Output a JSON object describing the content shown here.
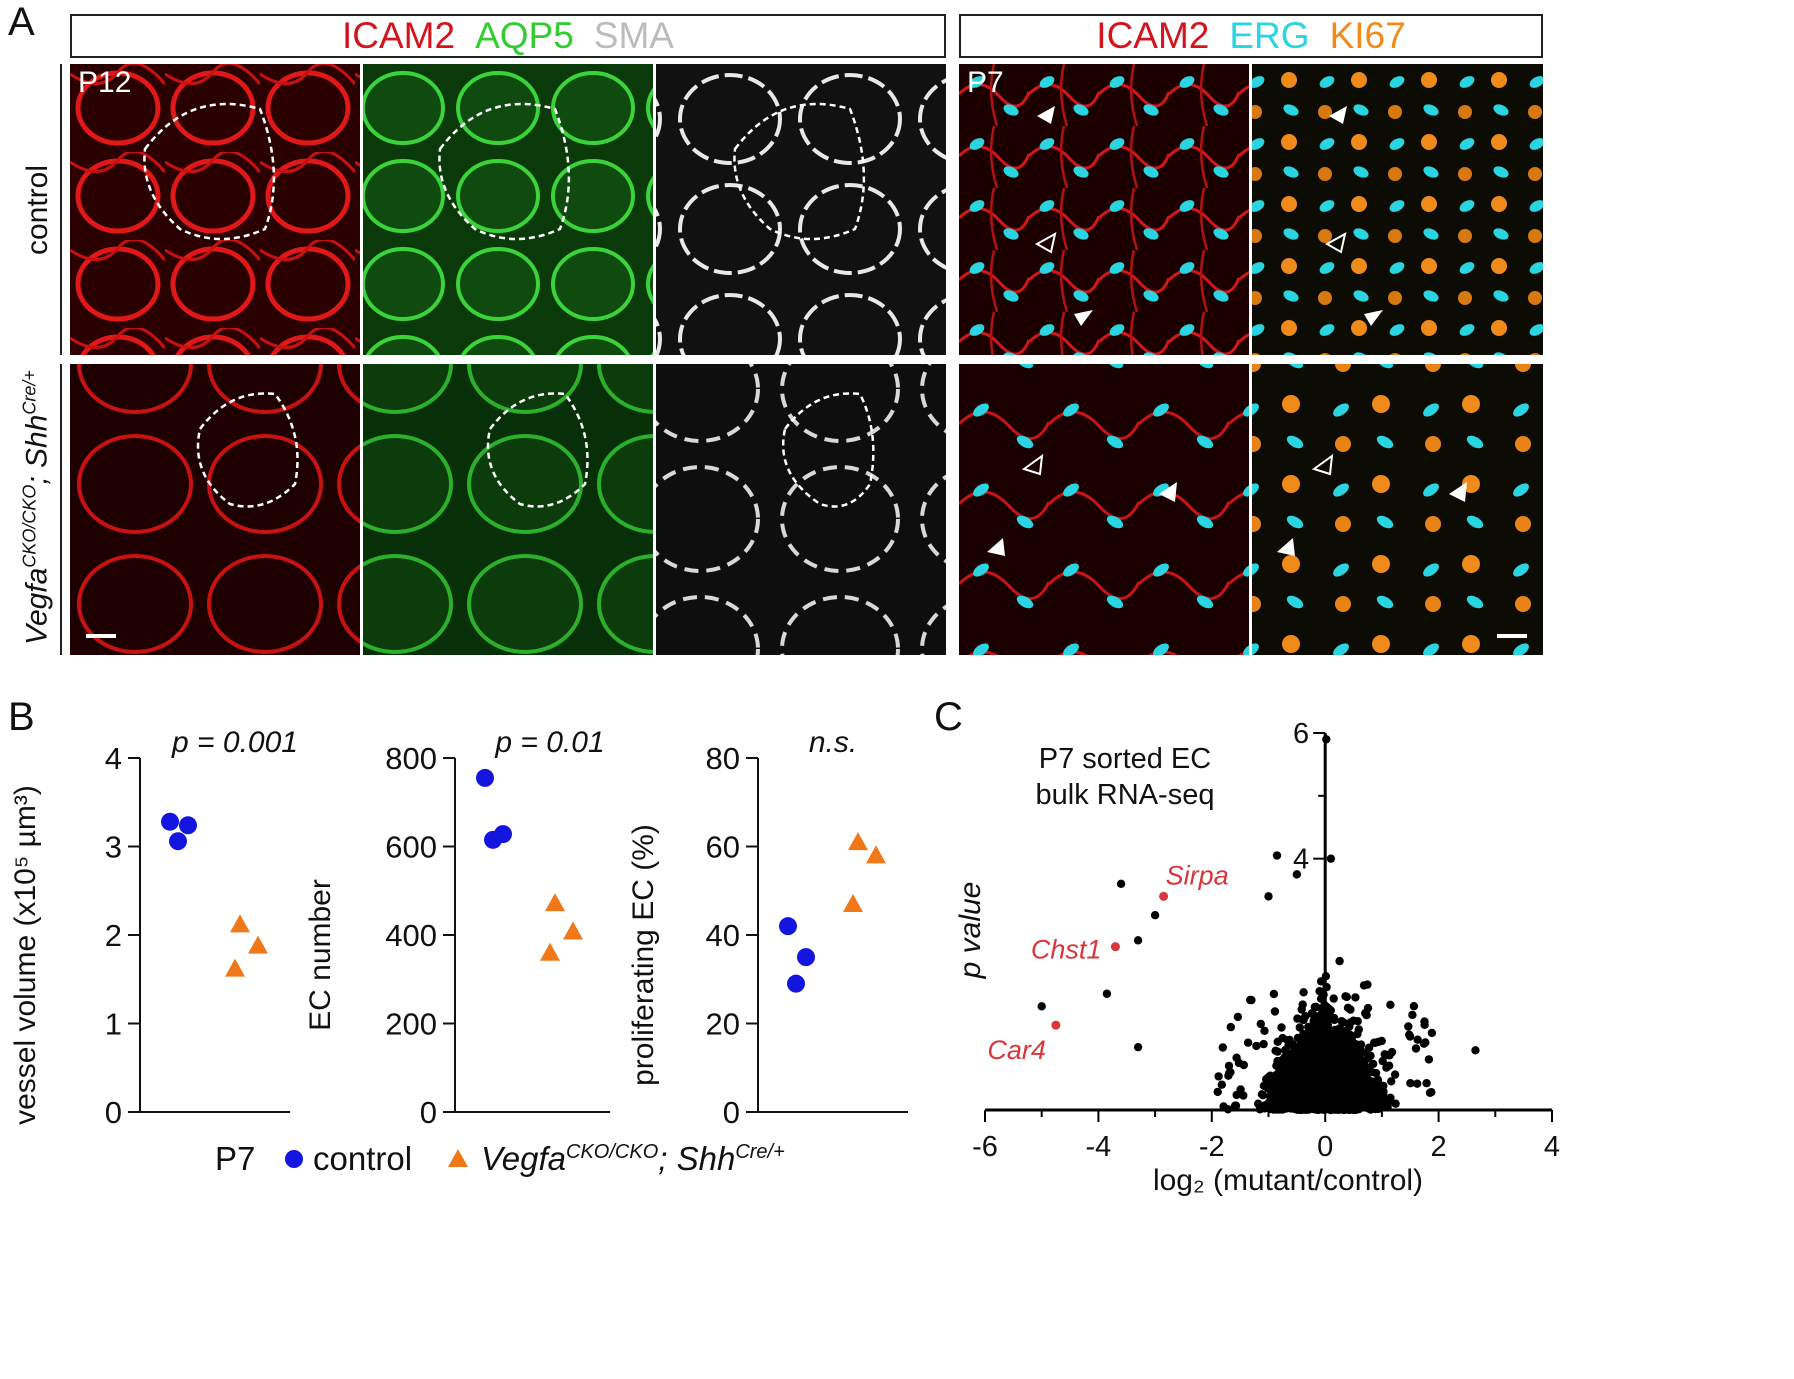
{
  "panelA": {
    "letter": "A",
    "left_header": {
      "marker1": "ICAM2",
      "marker2": "AQP5",
      "marker3": "SMA",
      "color1": "#d4141c",
      "color2": "#33cc33",
      "color3": "#bcbcbc"
    },
    "right_header": {
      "marker1": "ICAM2",
      "marker2": "ERG",
      "marker3": "KI67",
      "color1": "#d4141c",
      "color2": "#2ad4e0",
      "color3": "#f08a1a"
    },
    "row_label_control": "control",
    "row_label_mutant_gene": "Vegfa",
    "row_label_mutant_sup1": "CKO/CKO",
    "row_label_mutant_sep": "; ",
    "row_label_mutant_gene2": "Shh",
    "row_label_mutant_sup2": "Cre/+",
    "left_age": "P12",
    "right_age": "P7"
  },
  "panelB": {
    "letter": "B",
    "legend": {
      "age": "P7",
      "control_label": "control",
      "mutant_gene": "Vegfa",
      "mutant_sup1": "CKO/CKO",
      "mutant_sep": "; ",
      "mutant_gene2": "Shh",
      "mutant_sup2": "Cre/+",
      "control_color": "#1515e0",
      "mutant_color": "#f07818"
    }
  },
  "chart_data": [
    {
      "type": "scatter",
      "title": "p = 0.001",
      "ylabel": "vessel volume (x10⁵ µm³)",
      "ylim": [
        0,
        4
      ],
      "yticks": [
        "0",
        "1",
        "2",
        "3",
        "4"
      ],
      "series": [
        {
          "name": "control",
          "values": [
            3.28,
            3.24,
            3.06
          ]
        },
        {
          "name": "Vegfa CKO/CKO; Shh Cre/+",
          "values": [
            2.12,
            1.88,
            1.62
          ]
        }
      ]
    },
    {
      "type": "scatter",
      "title": "p = 0.01",
      "ylabel": "EC number",
      "ylim": [
        0,
        800
      ],
      "yticks": [
        "0",
        "200",
        "400",
        "600",
        "800"
      ],
      "series": [
        {
          "name": "control",
          "values": [
            755,
            628,
            615
          ]
        },
        {
          "name": "Vegfa CKO/CKO; Shh Cre/+",
          "values": [
            472,
            408,
            360
          ]
        }
      ]
    },
    {
      "type": "scatter",
      "title": "n.s.",
      "ylabel": "proliferating EC (%)",
      "ylim": [
        0,
        80
      ],
      "yticks": [
        "0",
        "20",
        "40",
        "60",
        "80"
      ],
      "series": [
        {
          "name": "control",
          "values": [
            42,
            35,
            29
          ]
        },
        {
          "name": "Vegfa CKO/CKO; Shh Cre/+",
          "values": [
            61,
            58,
            47
          ]
        }
      ]
    },
    {
      "type": "scatter",
      "panel": "C",
      "annotation_line1": "P7 sorted EC",
      "annotation_line2": "bulk RNA-seq",
      "xlabel": "log₂ (mutant/control)",
      "ylabel": "p value",
      "xlim": [
        -6,
        4
      ],
      "ylim": [
        0,
        6
      ],
      "xticks": [
        "-6",
        "-4",
        "-2",
        "0",
        "2",
        "4"
      ],
      "yticks": [
        "6",
        "4"
      ],
      "highlighted_genes": [
        {
          "name": "Sirpa",
          "x": -2.85,
          "y": 3.4,
          "color": "#d9353a"
        },
        {
          "name": "Chst1",
          "x": -3.7,
          "y": 2.6,
          "color": "#d9353a"
        },
        {
          "name": "Car4",
          "x": -4.75,
          "y": 1.35,
          "color": "#d9353a"
        }
      ],
      "outlier_points": [
        {
          "x": 0.02,
          "y": 5.9
        },
        {
          "x": -0.85,
          "y": 4.05
        },
        {
          "x": -3.6,
          "y": 3.6
        },
        {
          "x": -3.0,
          "y": 3.1
        },
        {
          "x": -0.5,
          "y": 3.75
        },
        {
          "x": -1.0,
          "y": 3.4
        },
        {
          "x": -5.0,
          "y": 1.65
        },
        {
          "x": -3.85,
          "y": 1.85
        },
        {
          "x": -3.3,
          "y": 2.7
        },
        {
          "x": 0.1,
          "y": 4.0
        },
        {
          "x": 2.65,
          "y": 0.95
        },
        {
          "x": -3.3,
          "y": 1.0
        }
      ]
    }
  ],
  "panelC": {
    "letter": "C"
  }
}
